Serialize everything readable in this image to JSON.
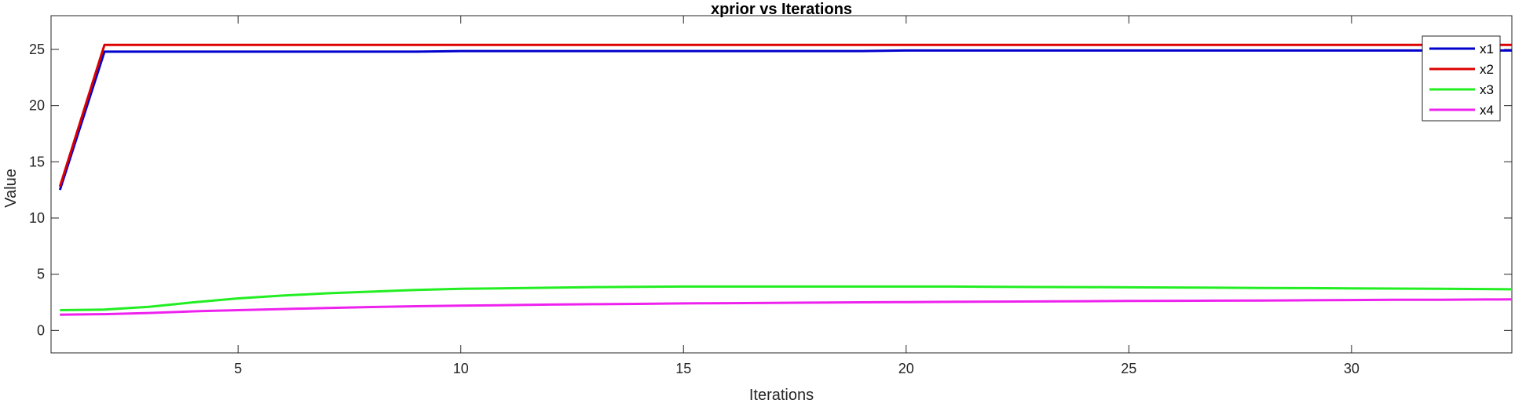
{
  "chart_data": {
    "type": "line",
    "title": "xprior vs Iterations",
    "xlabel": "Iterations",
    "ylabel": "Value",
    "xlim": [
      0.8,
      33.6
    ],
    "ylim": [
      -2,
      28
    ],
    "xticks": [
      5,
      10,
      15,
      20,
      25,
      30
    ],
    "yticks": [
      0,
      5,
      10,
      15,
      20,
      25
    ],
    "grid": false,
    "legend_position": "top-right",
    "series": [
      {
        "name": "x1",
        "color": "#0000cc",
        "x": [
          1,
          2,
          3,
          4,
          5,
          6,
          7,
          8,
          9,
          10,
          11,
          12,
          13,
          14,
          15,
          16,
          17,
          18,
          19,
          20,
          21,
          22,
          23,
          24,
          25,
          26,
          27,
          28,
          29,
          30,
          31,
          32,
          33,
          33.6
        ],
        "y": [
          12.5,
          24.8,
          24.8,
          24.8,
          24.8,
          24.8,
          24.8,
          24.8,
          24.8,
          24.85,
          24.85,
          24.85,
          24.85,
          24.85,
          24.85,
          24.85,
          24.85,
          24.85,
          24.85,
          24.9,
          24.9,
          24.9,
          24.9,
          24.9,
          24.9,
          24.9,
          24.9,
          24.9,
          24.9,
          24.9,
          24.9,
          24.9,
          24.9,
          24.9
        ]
      },
      {
        "name": "x2",
        "color": "#dd0000",
        "x": [
          1,
          2,
          3,
          4,
          5,
          6,
          7,
          8,
          9,
          10,
          11,
          12,
          13,
          14,
          15,
          16,
          17,
          18,
          19,
          20,
          21,
          22,
          23,
          24,
          25,
          26,
          27,
          28,
          29,
          30,
          31,
          32,
          33,
          33.6
        ],
        "y": [
          12.8,
          25.4,
          25.4,
          25.4,
          25.4,
          25.4,
          25.4,
          25.4,
          25.4,
          25.4,
          25.4,
          25.4,
          25.4,
          25.4,
          25.4,
          25.4,
          25.4,
          25.4,
          25.4,
          25.4,
          25.4,
          25.4,
          25.4,
          25.4,
          25.4,
          25.4,
          25.4,
          25.4,
          25.4,
          25.4,
          25.4,
          25.4,
          25.4,
          25.4
        ]
      },
      {
        "name": "x3",
        "color": "#22ee22",
        "x": [
          1,
          2,
          3,
          4,
          5,
          6,
          7,
          8,
          9,
          10,
          11,
          12,
          13,
          14,
          15,
          16,
          17,
          18,
          19,
          20,
          21,
          22,
          23,
          24,
          25,
          26,
          27,
          28,
          29,
          30,
          31,
          32,
          33,
          33.6
        ],
        "y": [
          1.8,
          1.85,
          2.1,
          2.5,
          2.85,
          3.1,
          3.3,
          3.45,
          3.6,
          3.7,
          3.75,
          3.8,
          3.85,
          3.88,
          3.9,
          3.9,
          3.9,
          3.9,
          3.9,
          3.9,
          3.9,
          3.88,
          3.86,
          3.85,
          3.83,
          3.82,
          3.8,
          3.78,
          3.76,
          3.74,
          3.72,
          3.7,
          3.68,
          3.66
        ]
      },
      {
        "name": "x4",
        "color": "#ee22ee",
        "x": [
          1,
          2,
          3,
          4,
          5,
          6,
          7,
          8,
          9,
          10,
          11,
          12,
          13,
          14,
          15,
          16,
          17,
          18,
          19,
          20,
          21,
          22,
          23,
          24,
          25,
          26,
          27,
          28,
          29,
          30,
          31,
          32,
          33,
          33.6
        ],
        "y": [
          1.4,
          1.45,
          1.55,
          1.7,
          1.8,
          1.9,
          2.0,
          2.08,
          2.15,
          2.2,
          2.25,
          2.3,
          2.33,
          2.36,
          2.4,
          2.42,
          2.45,
          2.47,
          2.5,
          2.52,
          2.54,
          2.56,
          2.58,
          2.6,
          2.62,
          2.63,
          2.65,
          2.66,
          2.68,
          2.7,
          2.72,
          2.73,
          2.75,
          2.76
        ]
      }
    ]
  }
}
